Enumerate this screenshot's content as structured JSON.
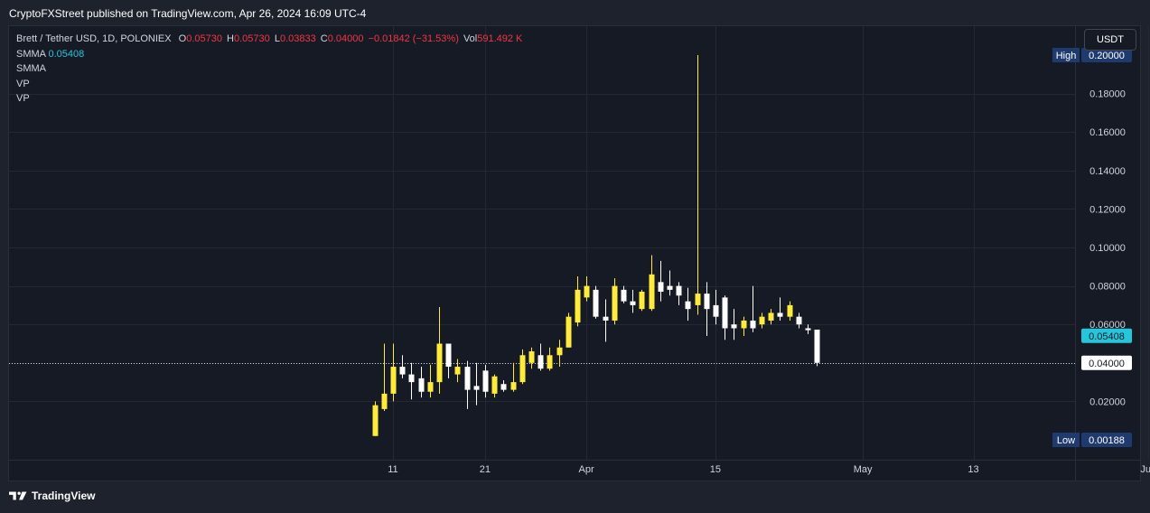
{
  "publisher": {
    "text": "CryptoFXStreet published on TradingView.com, Apr 26, 2024 16:09 UTC-4"
  },
  "legend": {
    "title": "Brett / Tether USD, 1D, POLONIEX",
    "open_label": "O",
    "open_value": "0.05730",
    "high_label": "H",
    "high_value": "0.05730",
    "low_label": "L",
    "low_value": "0.03833",
    "close_label": "C",
    "close_value": "0.04000",
    "change": "−0.01842 (−31.53%)",
    "vol_label": "Vol",
    "vol_value": "591.492 K",
    "indicators": [
      {
        "name": "SMMA",
        "value": "0.05408"
      },
      {
        "name": "SMMA",
        "value": ""
      },
      {
        "name": "VP",
        "value": ""
      },
      {
        "name": "VP",
        "value": ""
      }
    ]
  },
  "currency_button": "USDT",
  "footer": {
    "brand": "TradingView"
  },
  "colors": {
    "up": "#ffeb3b",
    "down": "#ffffff",
    "grid": "#242833",
    "axis_text": "#d1d4dc",
    "smma_badge": "#26c6da",
    "hl_badge": "#1e3a6e",
    "last_price_line": "#d1d4dc"
  },
  "chart_data": {
    "type": "candlestick",
    "title": "Brett / Tether USD, 1D, POLONIEX",
    "ylim": [
      0.0,
      0.2
    ],
    "y_ticks": [
      "0.18000",
      "0.16000",
      "0.14000",
      "0.12000",
      "0.10000",
      "0.08000",
      "0.06000",
      "0.02000"
    ],
    "x_ticks": [
      {
        "label": "11",
        "date": "2024-03-11"
      },
      {
        "label": "21",
        "date": "2024-03-21"
      },
      {
        "label": "Apr",
        "date": "2024-04-01"
      },
      {
        "label": "15",
        "date": "2024-04-15"
      },
      {
        "label": "May",
        "date": "2024-05-01"
      },
      {
        "label": "13",
        "date": "2024-05-13"
      },
      {
        "label": "Jun",
        "date": "2024-06-01"
      }
    ],
    "x_range": [
      "2024-02-18",
      "2024-06-13"
    ],
    "grid": true,
    "badges": {
      "high_label": "High",
      "high_value": "0.20000",
      "low_label": "Low",
      "low_value": "0.00188",
      "smma_value": "0.05408",
      "last_value": "0.04000"
    },
    "values": {
      "high": 0.2,
      "low": 0.00188,
      "smma": 0.05408,
      "last": 0.04
    },
    "candles": [
      {
        "date": "2024-03-09",
        "o": 0.002,
        "h": 0.02,
        "l": 0.002,
        "c": 0.018
      },
      {
        "date": "2024-03-10",
        "o": 0.016,
        "h": 0.05,
        "l": 0.015,
        "c": 0.024
      },
      {
        "date": "2024-03-11",
        "o": 0.024,
        "h": 0.05,
        "l": 0.02,
        "c": 0.038
      },
      {
        "date": "2024-03-12",
        "o": 0.038,
        "h": 0.044,
        "l": 0.032,
        "c": 0.034
      },
      {
        "date": "2024-03-13",
        "o": 0.034,
        "h": 0.04,
        "l": 0.021,
        "c": 0.03
      },
      {
        "date": "2024-03-14",
        "o": 0.032,
        "h": 0.038,
        "l": 0.022,
        "c": 0.025
      },
      {
        "date": "2024-03-15",
        "o": 0.025,
        "h": 0.039,
        "l": 0.022,
        "c": 0.03
      },
      {
        "date": "2024-03-16",
        "o": 0.03,
        "h": 0.069,
        "l": 0.024,
        "c": 0.05
      },
      {
        "date": "2024-03-17",
        "o": 0.05,
        "h": 0.05,
        "l": 0.032,
        "c": 0.038
      },
      {
        "date": "2024-03-18",
        "o": 0.034,
        "h": 0.042,
        "l": 0.03,
        "c": 0.038
      },
      {
        "date": "2024-03-19",
        "o": 0.038,
        "h": 0.041,
        "l": 0.016,
        "c": 0.026
      },
      {
        "date": "2024-03-20",
        "o": 0.028,
        "h": 0.04,
        "l": 0.018,
        "c": 0.026
      },
      {
        "date": "2024-03-21",
        "o": 0.036,
        "h": 0.039,
        "l": 0.022,
        "c": 0.025
      },
      {
        "date": "2024-03-22",
        "o": 0.024,
        "h": 0.034,
        "l": 0.022,
        "c": 0.033
      },
      {
        "date": "2024-03-23",
        "o": 0.029,
        "h": 0.031,
        "l": 0.025,
        "c": 0.026
      },
      {
        "date": "2024-03-24",
        "o": 0.026,
        "h": 0.04,
        "l": 0.025,
        "c": 0.03
      },
      {
        "date": "2024-03-25",
        "o": 0.03,
        "h": 0.047,
        "l": 0.029,
        "c": 0.044
      },
      {
        "date": "2024-03-26",
        "o": 0.04,
        "h": 0.048,
        "l": 0.037,
        "c": 0.046
      },
      {
        "date": "2024-03-27",
        "o": 0.044,
        "h": 0.05,
        "l": 0.036,
        "c": 0.037
      },
      {
        "date": "2024-03-28",
        "o": 0.037,
        "h": 0.048,
        "l": 0.036,
        "c": 0.044
      },
      {
        "date": "2024-03-29",
        "o": 0.044,
        "h": 0.052,
        "l": 0.038,
        "c": 0.048
      },
      {
        "date": "2024-03-30",
        "o": 0.048,
        "h": 0.066,
        "l": 0.048,
        "c": 0.064
      },
      {
        "date": "2024-03-31",
        "o": 0.061,
        "h": 0.085,
        "l": 0.059,
        "c": 0.078
      },
      {
        "date": "2024-04-01",
        "o": 0.074,
        "h": 0.085,
        "l": 0.072,
        "c": 0.08
      },
      {
        "date": "2024-04-02",
        "o": 0.078,
        "h": 0.08,
        "l": 0.063,
        "c": 0.064
      },
      {
        "date": "2024-04-03",
        "o": 0.064,
        "h": 0.073,
        "l": 0.051,
        "c": 0.062
      },
      {
        "date": "2024-04-04",
        "o": 0.062,
        "h": 0.084,
        "l": 0.06,
        "c": 0.08
      },
      {
        "date": "2024-04-05",
        "o": 0.078,
        "h": 0.08,
        "l": 0.071,
        "c": 0.072
      },
      {
        "date": "2024-04-06",
        "o": 0.072,
        "h": 0.078,
        "l": 0.066,
        "c": 0.07
      },
      {
        "date": "2024-04-07",
        "o": 0.068,
        "h": 0.078,
        "l": 0.067,
        "c": 0.077
      },
      {
        "date": "2024-04-08",
        "o": 0.068,
        "h": 0.096,
        "l": 0.067,
        "c": 0.086
      },
      {
        "date": "2024-04-09",
        "o": 0.082,
        "h": 0.093,
        "l": 0.072,
        "c": 0.077
      },
      {
        "date": "2024-04-10",
        "o": 0.08,
        "h": 0.088,
        "l": 0.075,
        "c": 0.078
      },
      {
        "date": "2024-04-11",
        "o": 0.08,
        "h": 0.082,
        "l": 0.07,
        "c": 0.075
      },
      {
        "date": "2024-04-12",
        "o": 0.072,
        "h": 0.079,
        "l": 0.062,
        "c": 0.068
      },
      {
        "date": "2024-04-13",
        "o": 0.07,
        "h": 0.2,
        "l": 0.065,
        "c": 0.076
      },
      {
        "date": "2024-04-14",
        "o": 0.076,
        "h": 0.082,
        "l": 0.054,
        "c": 0.068
      },
      {
        "date": "2024-04-15",
        "o": 0.07,
        "h": 0.078,
        "l": 0.06,
        "c": 0.064
      },
      {
        "date": "2024-04-16",
        "o": 0.074,
        "h": 0.075,
        "l": 0.052,
        "c": 0.058
      },
      {
        "date": "2024-04-17",
        "o": 0.06,
        "h": 0.068,
        "l": 0.052,
        "c": 0.058
      },
      {
        "date": "2024-04-18",
        "o": 0.058,
        "h": 0.064,
        "l": 0.054,
        "c": 0.062
      },
      {
        "date": "2024-04-19",
        "o": 0.062,
        "h": 0.08,
        "l": 0.056,
        "c": 0.058
      },
      {
        "date": "2024-04-20",
        "o": 0.06,
        "h": 0.066,
        "l": 0.058,
        "c": 0.064
      },
      {
        "date": "2024-04-21",
        "o": 0.062,
        "h": 0.068,
        "l": 0.06,
        "c": 0.066
      },
      {
        "date": "2024-04-22",
        "o": 0.066,
        "h": 0.074,
        "l": 0.062,
        "c": 0.064
      },
      {
        "date": "2024-04-23",
        "o": 0.064,
        "h": 0.072,
        "l": 0.062,
        "c": 0.07
      },
      {
        "date": "2024-04-24",
        "o": 0.064,
        "h": 0.066,
        "l": 0.058,
        "c": 0.06
      },
      {
        "date": "2024-04-25",
        "o": 0.058,
        "h": 0.06,
        "l": 0.055,
        "c": 0.057
      },
      {
        "date": "2024-04-26",
        "o": 0.0573,
        "h": 0.0573,
        "l": 0.03833,
        "c": 0.04
      }
    ]
  }
}
